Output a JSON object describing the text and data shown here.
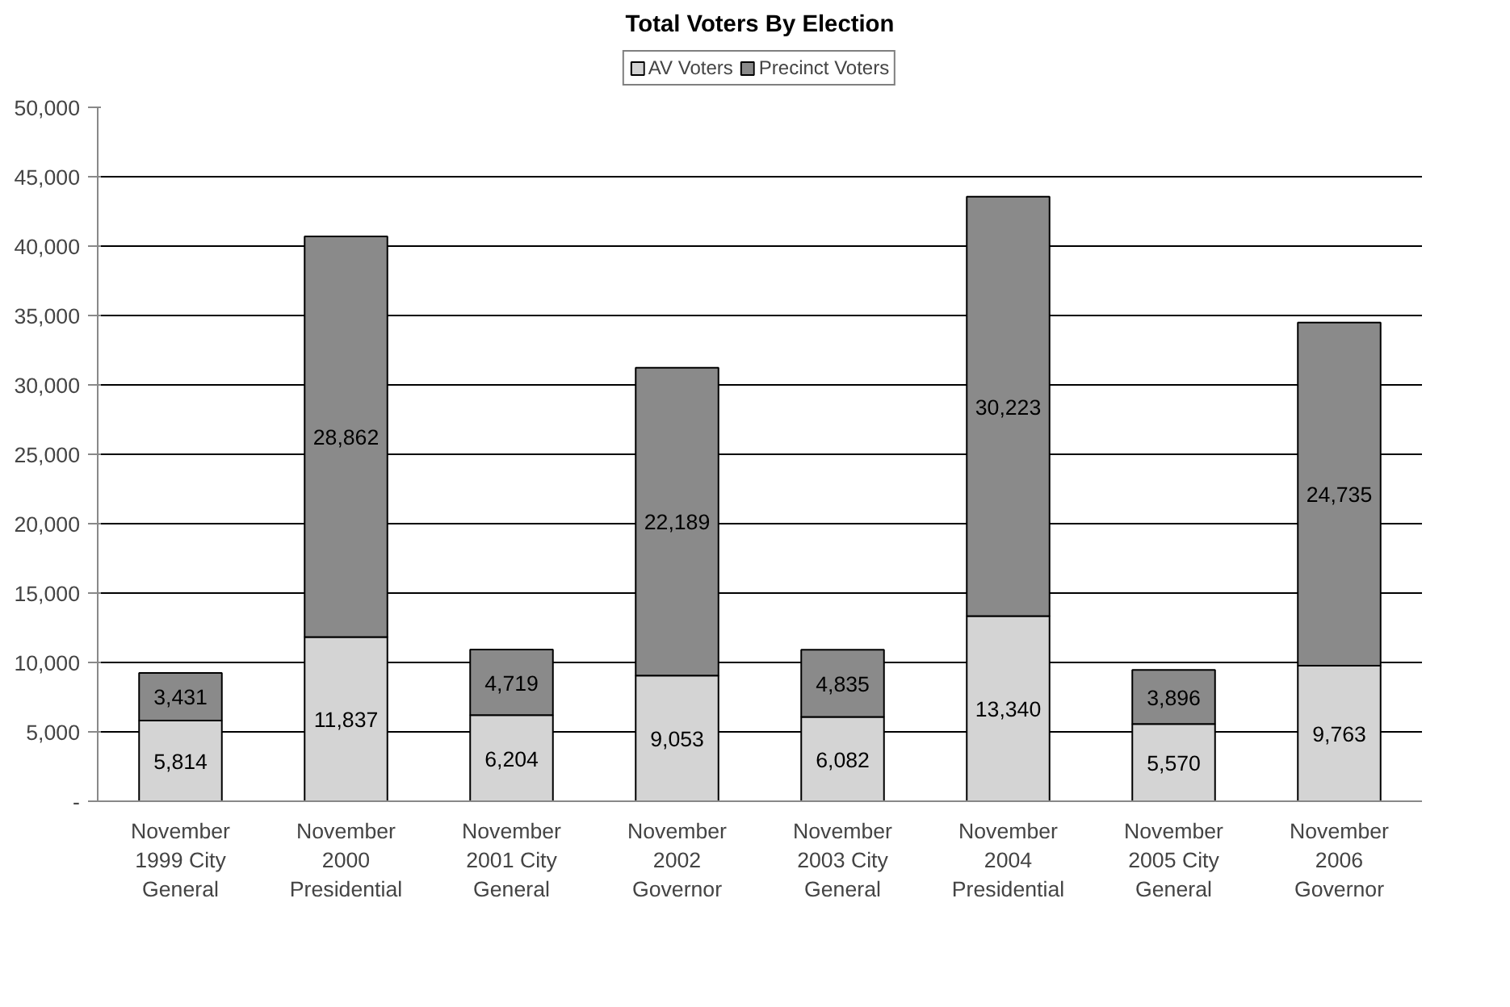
{
  "chart_data": {
    "type": "bar",
    "title": "Total Voters By Election",
    "stacked": true,
    "categories": [
      "November\n1999 City\nGeneral",
      "November\n2000\nPresidential",
      "November\n2001 City\nGeneral",
      "November\n2002\nGovernor",
      "November\n2003 City\nGeneral",
      "November\n2004\nPresidential",
      "November\n2005 City\nGeneral",
      "November\n2006\nGovernor"
    ],
    "series": [
      {
        "name": "AV Voters",
        "color": "#d4d4d4",
        "values": [
          5814,
          11837,
          6204,
          9053,
          6082,
          13340,
          5570,
          9763
        ],
        "value_labels": [
          "5,814",
          "11,837",
          "6,204",
          "9,053",
          "6,082",
          "13,340",
          "5,570",
          "9,763"
        ]
      },
      {
        "name": "Precinct Voters",
        "color": "#8a8a8a",
        "values": [
          3431,
          28862,
          4719,
          22189,
          4835,
          30223,
          3896,
          24735
        ],
        "value_labels": [
          "3,431",
          "28,862",
          "4,719",
          "22,189",
          "4,835",
          "30,223",
          "3,896",
          "24,735"
        ]
      }
    ],
    "ylim": [
      0,
      50000
    ],
    "yticks": [
      {
        "value": 0,
        "label": "-"
      },
      {
        "value": 5000,
        "label": "5,000"
      },
      {
        "value": 10000,
        "label": "10,000"
      },
      {
        "value": 15000,
        "label": "15,000"
      },
      {
        "value": 20000,
        "label": "20,000"
      },
      {
        "value": 25000,
        "label": "25,000"
      },
      {
        "value": 30000,
        "label": "30,000"
      },
      {
        "value": 35000,
        "label": "35,000"
      },
      {
        "value": 40000,
        "label": "40,000"
      },
      {
        "value": 45000,
        "label": "45,000"
      },
      {
        "value": 50000,
        "label": "50,000"
      }
    ],
    "grid": "y",
    "legend": "top",
    "data_labels": true
  }
}
